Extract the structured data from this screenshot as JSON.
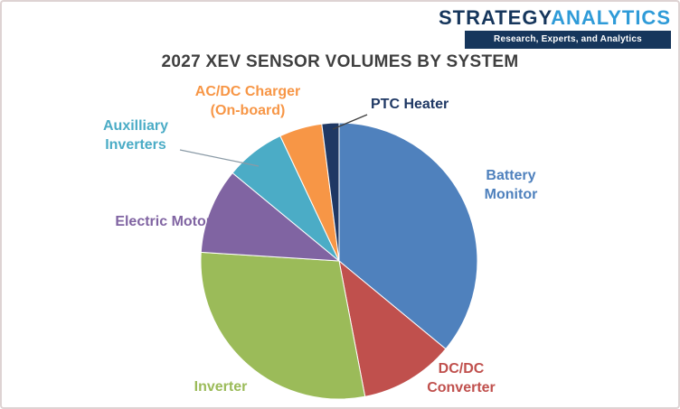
{
  "logo": {
    "part1": "STRATEGY",
    "part2": "ANALYTICS",
    "tagline": "Research, Experts, and Analytics",
    "navy_color": "#16365c",
    "blue_color": "#2f9bd8"
  },
  "title": "2027 XEV SENSOR VOLUMES BY SYSTEM",
  "chart_data": {
    "type": "pie",
    "title": "2027 XEV SENSOR VOLUMES BY SYSTEM",
    "legend": "none",
    "start_angle_deg": 0,
    "direction": "clockwise",
    "value_unit": "percent-share-estimated",
    "slices": [
      {
        "label": "Battery Monitor",
        "value": 36,
        "color": "#4F81BD"
      },
      {
        "label": "DC/DC Converter",
        "value": 11,
        "color": "#C0504D"
      },
      {
        "label": "Inverter",
        "value": 29,
        "color": "#9BBB59"
      },
      {
        "label": "Electric Motor",
        "value": 10,
        "color": "#8064A2"
      },
      {
        "label": "Auxilliary Inverters",
        "value": 7,
        "color": "#4BACC6"
      },
      {
        "label": "AC/DC Charger (On-board)",
        "value": 5,
        "color": "#F79646"
      },
      {
        "label": "PTC Heater",
        "value": 2,
        "color": "#1F3864"
      }
    ]
  }
}
